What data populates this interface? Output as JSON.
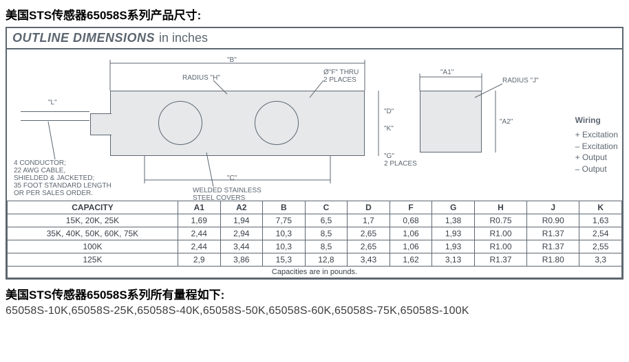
{
  "title_top": "美国STS传感器65058S系列产品尺寸:",
  "outline": {
    "bold": "OUTLINE DIMENSIONS",
    "unit": "in inches"
  },
  "diagram_labels": {
    "B": "\"B\"",
    "radius_h": "RADIUS \"H\"",
    "f_thru": "Ø\"F\" THRU\n2 PLACES",
    "A1": "\"A1\"",
    "radius_j": "RADIUS \"J\"",
    "L": "\"L\"",
    "D": "\"D\"",
    "K": "\"K\"",
    "A2": "\"A2\"",
    "G": "\"G\"\n2 PLACES",
    "C": "\"C\"",
    "conductor": "4 CONDUCTOR;\n22 AWG CABLE,\nSHIELDED & JACKETED;\n35 FOOT STANDARD LENGTH\nOR PER SALES ORDER.",
    "welded": "WELDED STAINLESS\nSTEEL COVERS"
  },
  "wiring": {
    "title": "Wiring",
    "lines": [
      "+ Excitation",
      "– Excitation",
      "+ Output",
      "– Output"
    ]
  },
  "table": {
    "headers": [
      "CAPACITY",
      "A1",
      "A2",
      "B",
      "C",
      "D",
      "F",
      "G",
      "H",
      "J",
      "K"
    ],
    "rows": [
      [
        "15K, 20K, 25K",
        "1,69",
        "1,94",
        "7,75",
        "6,5",
        "1,7",
        "0,68",
        "1,38",
        "R0.75",
        "R0.90",
        "1,63"
      ],
      [
        "35K, 40K, 50K, 60K, 75K",
        "2,44",
        "2,94",
        "10,3",
        "8,5",
        "2,65",
        "1,06",
        "1,93",
        "R1.00",
        "R1.37",
        "2,54"
      ],
      [
        "100K",
        "2,44",
        "3,44",
        "10,3",
        "8,5",
        "2,65",
        "1,06",
        "1,93",
        "R1.00",
        "R1.37",
        "2,55"
      ],
      [
        "125K",
        "2,9",
        "3,86",
        "15,3",
        "12,8",
        "3,43",
        "1,62",
        "3,13",
        "R1.37",
        "R1.80",
        "3,3"
      ]
    ],
    "caption": "Capacities are in pounds."
  },
  "footer_title": "美国STS传感器65058S系列所有量程如下:",
  "models": "65058S-10K,65058S-25K,65058S-40K,65058S-50K,65058S-60K,65058S-75K,65058S-100K",
  "colors": {
    "border": "#5c6670",
    "fill": "#e6e8ea",
    "text": "#3a4148"
  }
}
